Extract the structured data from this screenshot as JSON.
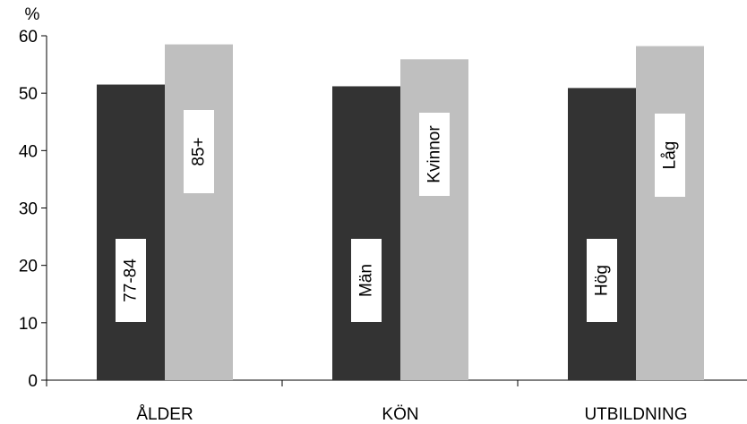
{
  "chart_data": {
    "type": "bar",
    "ylabel": "%",
    "ylim": [
      0,
      60
    ],
    "yticks": [
      0,
      10,
      20,
      30,
      40,
      50,
      60
    ],
    "grid": false,
    "legend": "none",
    "categories": [
      "ÅLDER",
      "KÖN",
      "UTBILDNING"
    ],
    "groups": [
      {
        "category": "ÅLDER",
        "bars": [
          {
            "label": "77-84",
            "value": 51.5,
            "color": "#333333"
          },
          {
            "label": "85+",
            "value": 58.5,
            "color": "#bfbfbf"
          }
        ]
      },
      {
        "category": "KÖN",
        "bars": [
          {
            "label": "Män",
            "value": 51.2,
            "color": "#333333"
          },
          {
            "label": "Kvinnor",
            "value": 55.9,
            "color": "#bfbfbf"
          }
        ]
      },
      {
        "category": "UTBILDNING",
        "bars": [
          {
            "label": "Hög",
            "value": 50.9,
            "color": "#333333"
          },
          {
            "label": "Låg",
            "value": 58.2,
            "color": "#bfbfbf"
          }
        ]
      }
    ]
  }
}
